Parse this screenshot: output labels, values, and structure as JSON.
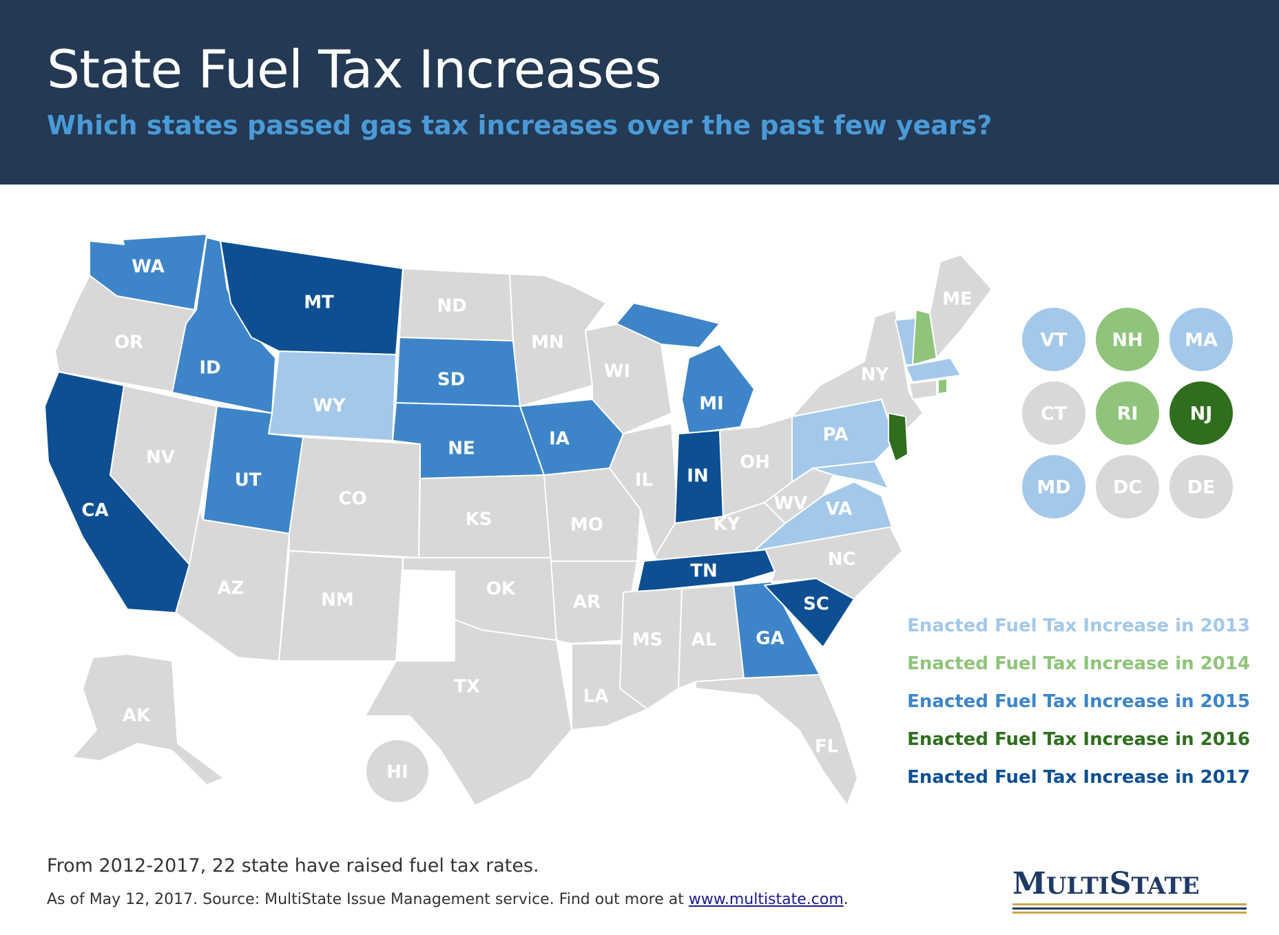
{
  "header": {
    "title": "State Fuel Tax Increases",
    "subtitle": "Which states passed gas tax increases over the past few years?"
  },
  "colors": {
    "y2013": "#a3c8ea",
    "y2014": "#8fc47a",
    "y2015": "#3d85c8",
    "y2016": "#2f6e1e",
    "y2017": "#0d4f92",
    "none": "#d8d8d8"
  },
  "legend": [
    {
      "label": "Enacted Fuel Tax Increase in 2013",
      "color": "#a3c8ea"
    },
    {
      "label": "Enacted Fuel Tax Increase in 2014",
      "color": "#8fc47a"
    },
    {
      "label": "Enacted Fuel Tax Increase in 2015",
      "color": "#3d85c8"
    },
    {
      "label": "Enacted Fuel Tax Increase in 2016",
      "color": "#2f6e1e"
    },
    {
      "label": "Enacted Fuel Tax Increase in 2017",
      "color": "#0d4f92"
    }
  ],
  "states": {
    "WA": {
      "label": "WA",
      "year": "2015"
    },
    "OR": {
      "label": "OR",
      "year": ""
    },
    "CA": {
      "label": "CA",
      "year": "2017"
    },
    "ID": {
      "label": "ID",
      "year": "2015"
    },
    "NV": {
      "label": "NV",
      "year": ""
    },
    "MT": {
      "label": "MT",
      "year": "2017"
    },
    "WY": {
      "label": "WY",
      "year": "2013"
    },
    "UT": {
      "label": "UT",
      "year": "2015"
    },
    "AZ": {
      "label": "AZ",
      "year": ""
    },
    "CO": {
      "label": "CO",
      "year": ""
    },
    "NM": {
      "label": "NM",
      "year": ""
    },
    "ND": {
      "label": "ND",
      "year": ""
    },
    "SD": {
      "label": "SD",
      "year": "2015"
    },
    "NE": {
      "label": "NE",
      "year": "2015"
    },
    "KS": {
      "label": "KS",
      "year": ""
    },
    "OK": {
      "label": "OK",
      "year": ""
    },
    "TX": {
      "label": "TX",
      "year": ""
    },
    "MN": {
      "label": "MN",
      "year": ""
    },
    "IA": {
      "label": "IA",
      "year": "2015"
    },
    "MO": {
      "label": "MO",
      "year": ""
    },
    "AR": {
      "label": "AR",
      "year": ""
    },
    "LA": {
      "label": "LA",
      "year": ""
    },
    "WI": {
      "label": "WI",
      "year": ""
    },
    "IL": {
      "label": "IL",
      "year": ""
    },
    "MI": {
      "label": "MI",
      "year": "2015"
    },
    "IN": {
      "label": "IN",
      "year": "2017"
    },
    "OH": {
      "label": "OH",
      "year": ""
    },
    "KY": {
      "label": "KY",
      "year": ""
    },
    "TN": {
      "label": "TN",
      "year": "2017"
    },
    "MS": {
      "label": "MS",
      "year": ""
    },
    "AL": {
      "label": "AL",
      "year": ""
    },
    "GA": {
      "label": "GA",
      "year": "2015"
    },
    "FL": {
      "label": "FL",
      "year": ""
    },
    "SC": {
      "label": "SC",
      "year": "2017"
    },
    "NC": {
      "label": "NC",
      "year": ""
    },
    "VA": {
      "label": "VA",
      "year": "2013"
    },
    "WV": {
      "label": "WV",
      "year": ""
    },
    "PA": {
      "label": "PA",
      "year": "2013"
    },
    "NY": {
      "label": "NY",
      "year": ""
    },
    "NJ": {
      "label": "NJ",
      "year": "2016"
    },
    "ME": {
      "label": "ME",
      "year": ""
    },
    "AK": {
      "label": "AK",
      "year": ""
    },
    "HI": {
      "label": "HI",
      "year": ""
    }
  },
  "small_states": [
    {
      "label": "VT",
      "year": "2013"
    },
    {
      "label": "NH",
      "year": "2014"
    },
    {
      "label": "MA",
      "year": "2013"
    },
    {
      "label": "CT",
      "year": ""
    },
    {
      "label": "RI",
      "year": "2014"
    },
    {
      "label": "NJ",
      "year": "2016"
    },
    {
      "label": "MD",
      "year": "2013"
    },
    {
      "label": "DC",
      "year": ""
    },
    {
      "label": "DE",
      "year": ""
    }
  ],
  "footer": {
    "summary": "From 2012-2017, 22 state have raised fuel tax rates.",
    "source_prefix": "As of May 12, 2017. Source: MultiState Issue Management service. Find out more at ",
    "source_link": "www.multistate.com",
    "source_suffix": "."
  },
  "logo": {
    "text": "MultiState"
  }
}
